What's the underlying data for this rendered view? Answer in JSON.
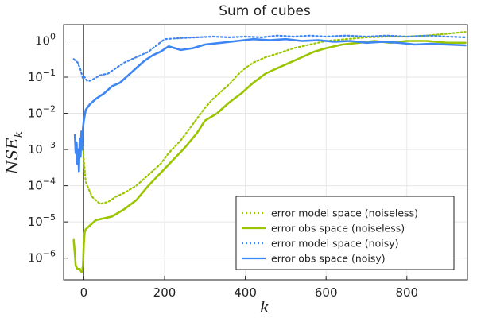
{
  "chart_data": {
    "type": "line",
    "title": "Sum of cubes",
    "xlabel": "k",
    "ylabel": "NSE",
    "ylabel_sub": "k",
    "xlim": [
      -50,
      950
    ],
    "ylim_log10": [
      -6.6,
      0.45
    ],
    "x_ticks": [
      0,
      200,
      400,
      600,
      800
    ],
    "y_ticks": [
      {
        "exp": 0,
        "label": "10",
        "sup": "0"
      },
      {
        "exp": -1,
        "label": "10",
        "sup": "−1"
      },
      {
        "exp": -2,
        "label": "10",
        "sup": "−2"
      },
      {
        "exp": -3,
        "label": "10",
        "sup": "−3"
      },
      {
        "exp": -4,
        "label": "10",
        "sup": "−4"
      },
      {
        "exp": -5,
        "label": "10",
        "sup": "−5"
      },
      {
        "exp": -6,
        "label": "10",
        "sup": "−6"
      }
    ],
    "vline_x": 0,
    "legend_position": "bottom-right",
    "series": [
      {
        "name": "error model space (noiseless)",
        "color": "#9bc500",
        "dash": "dotted",
        "points": [
          [
            -3,
            -2.7
          ],
          [
            0,
            -3.3
          ],
          [
            5,
            -3.9
          ],
          [
            20,
            -4.3
          ],
          [
            40,
            -4.5
          ],
          [
            60,
            -4.45
          ],
          [
            80,
            -4.3
          ],
          [
            100,
            -4.2
          ],
          [
            130,
            -4.0
          ],
          [
            160,
            -3.7
          ],
          [
            190,
            -3.4
          ],
          [
            210,
            -3.1
          ],
          [
            240,
            -2.75
          ],
          [
            270,
            -2.3
          ],
          [
            300,
            -1.85
          ],
          [
            320,
            -1.6
          ],
          [
            340,
            -1.4
          ],
          [
            360,
            -1.2
          ],
          [
            380,
            -0.95
          ],
          [
            400,
            -0.75
          ],
          [
            420,
            -0.6
          ],
          [
            450,
            -0.45
          ],
          [
            480,
            -0.35
          ],
          [
            520,
            -0.2
          ],
          [
            560,
            -0.1
          ],
          [
            600,
            0.0
          ],
          [
            650,
            0.05
          ],
          [
            700,
            0.1
          ],
          [
            750,
            0.12
          ],
          [
            800,
            0.12
          ],
          [
            850,
            0.15
          ],
          [
            900,
            0.2
          ],
          [
            945,
            0.25
          ]
        ]
      },
      {
        "name": "error obs space (noiseless)",
        "color": "#9bc500",
        "dash": "solid",
        "points": [
          [
            -25,
            -5.5
          ],
          [
            -22,
            -5.9
          ],
          [
            -20,
            -6.2
          ],
          [
            -16,
            -6.3
          ],
          [
            -10,
            -6.3
          ],
          [
            -5,
            -6.4
          ],
          [
            -2,
            -6.2
          ],
          [
            0,
            -5.6
          ],
          [
            2,
            -5.3
          ],
          [
            5,
            -5.2
          ],
          [
            15,
            -5.1
          ],
          [
            30,
            -4.95
          ],
          [
            50,
            -4.9
          ],
          [
            70,
            -4.85
          ],
          [
            100,
            -4.65
          ],
          [
            130,
            -4.4
          ],
          [
            160,
            -4.0
          ],
          [
            190,
            -3.65
          ],
          [
            220,
            -3.3
          ],
          [
            250,
            -2.95
          ],
          [
            280,
            -2.55
          ],
          [
            300,
            -2.2
          ],
          [
            330,
            -2.0
          ],
          [
            360,
            -1.7
          ],
          [
            390,
            -1.45
          ],
          [
            420,
            -1.15
          ],
          [
            450,
            -0.9
          ],
          [
            480,
            -0.75
          ],
          [
            510,
            -0.6
          ],
          [
            540,
            -0.45
          ],
          [
            570,
            -0.3
          ],
          [
            600,
            -0.2
          ],
          [
            640,
            -0.1
          ],
          [
            680,
            -0.05
          ],
          [
            720,
            0.0
          ],
          [
            760,
            -0.05
          ],
          [
            800,
            0.0
          ],
          [
            850,
            0.0
          ],
          [
            900,
            -0.05
          ],
          [
            945,
            -0.05
          ]
        ]
      },
      {
        "name": "error model space (noisy)",
        "color": "#3d86f3",
        "dash": "dotted",
        "points": [
          [
            -25,
            -0.5
          ],
          [
            -15,
            -0.6
          ],
          [
            -8,
            -0.8
          ],
          [
            -2,
            -1.05
          ],
          [
            2,
            -1.0
          ],
          [
            8,
            -1.1
          ],
          [
            15,
            -1.1
          ],
          [
            25,
            -1.05
          ],
          [
            40,
            -0.95
          ],
          [
            60,
            -0.9
          ],
          [
            80,
            -0.75
          ],
          [
            100,
            -0.6
          ],
          [
            130,
            -0.45
          ],
          [
            160,
            -0.3
          ],
          [
            200,
            0.05
          ],
          [
            240,
            0.08
          ],
          [
            280,
            0.1
          ],
          [
            320,
            0.12
          ],
          [
            360,
            0.1
          ],
          [
            400,
            0.12
          ],
          [
            440,
            0.1
          ],
          [
            480,
            0.15
          ],
          [
            520,
            0.12
          ],
          [
            560,
            0.15
          ],
          [
            600,
            0.12
          ],
          [
            650,
            0.15
          ],
          [
            700,
            0.12
          ],
          [
            750,
            0.15
          ],
          [
            800,
            0.12
          ],
          [
            850,
            0.15
          ],
          [
            900,
            0.12
          ],
          [
            945,
            0.1
          ]
        ]
      },
      {
        "name": "error obs space (noisy)",
        "color": "#3d86f3",
        "dash": "solid",
        "points": [
          [
            -22,
            -2.6
          ],
          [
            -20,
            -3.1
          ],
          [
            -18,
            -2.8
          ],
          [
            -16,
            -3.4
          ],
          [
            -14,
            -3.0
          ],
          [
            -12,
            -3.6
          ],
          [
            -10,
            -2.7
          ],
          [
            -8,
            -3.2
          ],
          [
            -6,
            -2.5
          ],
          [
            -4,
            -3.0
          ],
          [
            -2,
            -2.4
          ],
          [
            0,
            -2.2
          ],
          [
            5,
            -1.9
          ],
          [
            15,
            -1.75
          ],
          [
            30,
            -1.6
          ],
          [
            50,
            -1.45
          ],
          [
            70,
            -1.25
          ],
          [
            90,
            -1.15
          ],
          [
            110,
            -0.95
          ],
          [
            130,
            -0.75
          ],
          [
            150,
            -0.55
          ],
          [
            170,
            -0.4
          ],
          [
            190,
            -0.3
          ],
          [
            210,
            -0.15
          ],
          [
            240,
            -0.25
          ],
          [
            270,
            -0.2
          ],
          [
            300,
            -0.1
          ],
          [
            340,
            -0.05
          ],
          [
            380,
            0.0
          ],
          [
            420,
            0.05
          ],
          [
            460,
            0.02
          ],
          [
            500,
            0.05
          ],
          [
            540,
            0.0
          ],
          [
            580,
            0.02
          ],
          [
            620,
            -0.02
          ],
          [
            660,
            0.0
          ],
          [
            700,
            -0.05
          ],
          [
            740,
            -0.02
          ],
          [
            780,
            -0.05
          ],
          [
            820,
            -0.1
          ],
          [
            860,
            -0.08
          ],
          [
            900,
            -0.1
          ],
          [
            945,
            -0.12
          ]
        ]
      }
    ]
  }
}
